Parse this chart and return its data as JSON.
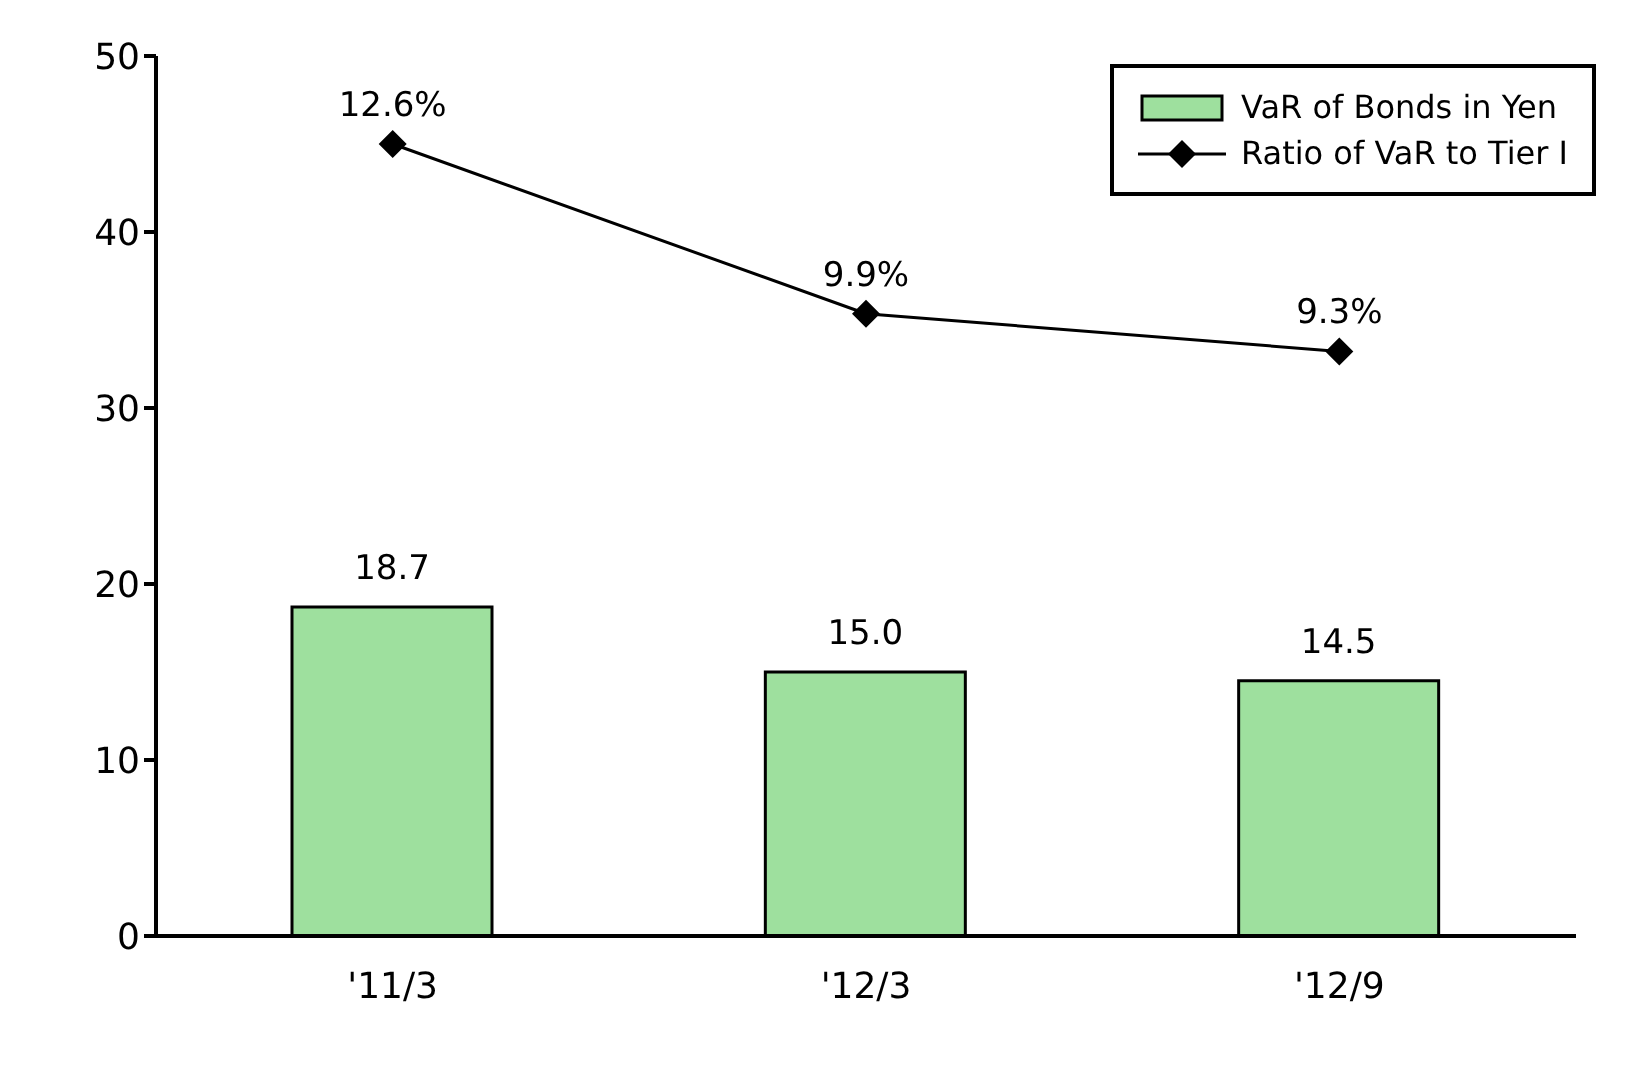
{
  "chart_data": {
    "type": "bar",
    "categories": [
      "'11/3",
      "'12/3",
      "'12/9"
    ],
    "series": [
      {
        "name": "VaR of Bonds in Yen",
        "color": "#9ee09e",
        "values": [
          18.7,
          15.0,
          14.5
        ],
        "value_labels": [
          "18.7",
          "15.0",
          "14.5"
        ]
      },
      {
        "name": "Ratio of VaR to Tier I",
        "type": "line",
        "axis": "y2",
        "color": "#000000",
        "values": [
          12.6,
          9.9,
          9.3
        ],
        "value_labels": [
          "12.6%",
          "9.9%",
          "9.3%"
        ],
        "marker": "diamond"
      }
    ],
    "ylim": [
      0,
      50
    ],
    "yticks": [
      0,
      10,
      20,
      30,
      40,
      50
    ],
    "y2lim": [
      0,
      14
    ],
    "legend": "top right"
  }
}
